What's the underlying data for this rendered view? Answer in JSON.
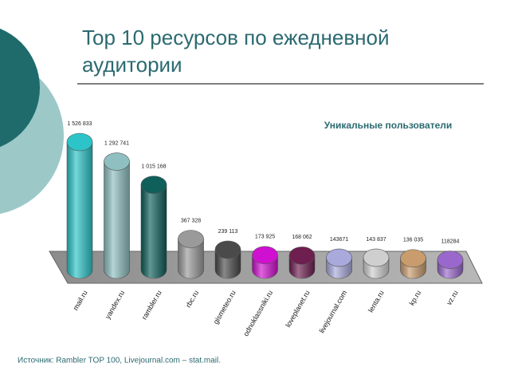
{
  "chart_data": {
    "type": "cylinder-bar",
    "title": "Top 10 ресурсов по ежедневной аудитории",
    "series": [
      {
        "name": "Уникальные пользователи",
        "values": [
          1526833,
          1292741,
          1015168,
          367328,
          239113,
          173925,
          168062,
          143671,
          143837,
          136035,
          118284
        ],
        "value_labels": [
          "1 526 833",
          "1 292 741",
          "1 015 168",
          "367 328",
          "239 113",
          "173 925",
          "168 062",
          "143671",
          "143 837",
          "136 035",
          "118284"
        ],
        "colors": [
          "#2cc4c8",
          "#8fbfc0",
          "#0f5f5a",
          "#9a9a9a",
          "#4a4a4a",
          "#d010d0",
          "#6e1f50",
          "#a9a9dc",
          "#cfcfcf",
          "#c89c6c",
          "#9a68cc"
        ]
      }
    ],
    "categories": [
      "mail.ru",
      "yandex.ru",
      "rambler.ru",
      "rbc.ru",
      "gismeteo.ru",
      "odnoklassniki.ru",
      "loveplanet.ru",
      "livejournal.com",
      "lenta.ru",
      "kp.ru",
      "vz.ru"
    ],
    "source": "Источник: Rambler TOP 100, Livejournal.com – stat.mail."
  }
}
